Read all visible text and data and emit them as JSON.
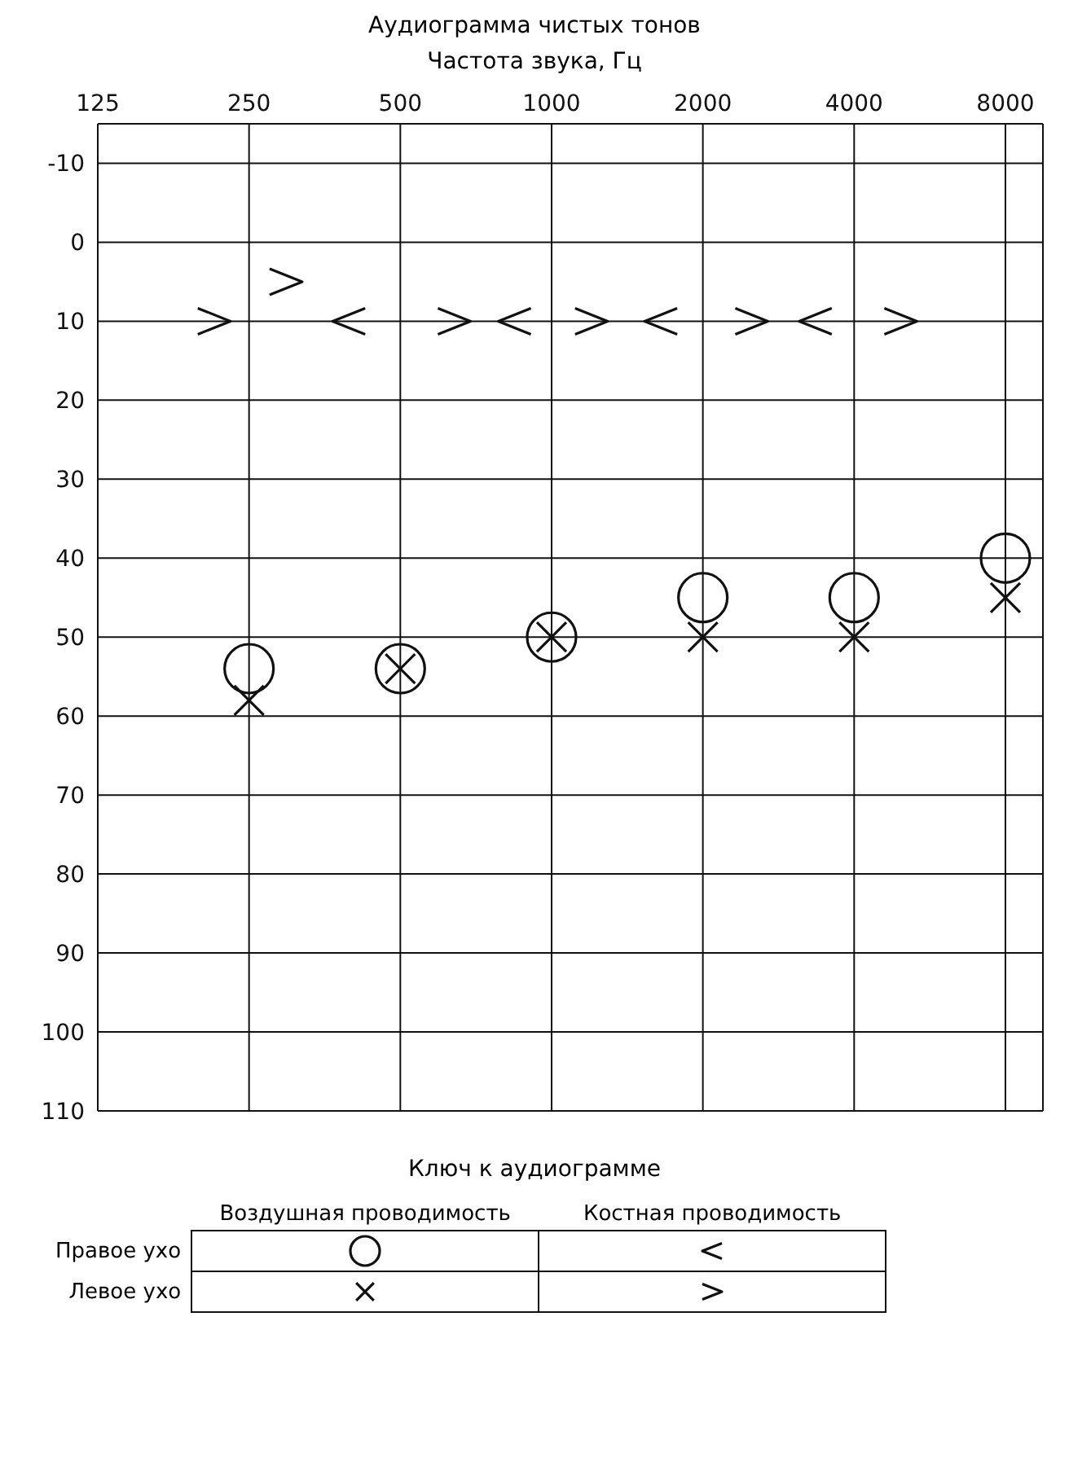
{
  "chart_data": {
    "type": "scatter",
    "title": "Аудиограмма чистых тонов",
    "xlabel": "Частота звука, Гц",
    "log": "x",
    "xlim": [
      125,
      9500
    ],
    "xticks": [
      125,
      250,
      500,
      1000,
      2000,
      4000,
      8000
    ],
    "ylim": [
      110,
      -15
    ],
    "yticks": [
      -10,
      0,
      10,
      20,
      30,
      40,
      50,
      60,
      70,
      80,
      90,
      100,
      110
    ],
    "grid": true,
    "legend": false,
    "annotations": [
      "Ключ к аудиограмме",
      "Воздушная проводимость",
      "Костная проводимость",
      "Правое ухо",
      "Левое ухо"
    ],
    "series": [
      {
        "color": "#111111",
        "marker": "circle",
        "x": [
          250,
          500,
          1000,
          2000,
          4000,
          8000
        ],
        "values": [
          54,
          54,
          50,
          45,
          45,
          40
        ]
      },
      {
        "color": "#111111",
        "marker": "cross",
        "x": [
          250,
          500,
          1000,
          2000,
          4000,
          8000
        ],
        "values": [
          58,
          54,
          50,
          50,
          50,
          45
        ]
      },
      {
        "color": "#111111",
        "x": [
          395,
          844,
          1650,
          3350
        ],
        "values": [
          10,
          10,
          10,
          10
        ]
      },
      {
        "color": "#111111",
        "x": [
          213,
          296,
          640,
          1200,
          2500,
          4950
        ],
        "values": [
          10,
          5,
          10,
          10,
          10,
          10
        ]
      }
    ]
  }
}
